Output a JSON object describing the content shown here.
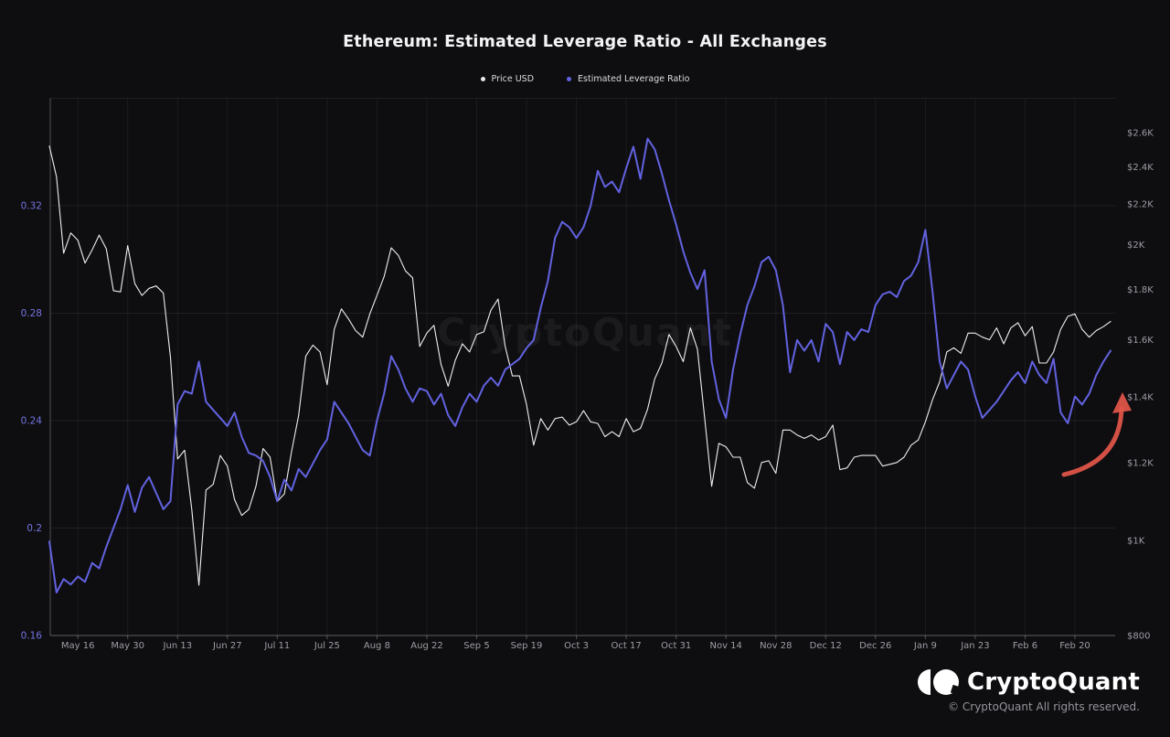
{
  "title": "Ethereum: Estimated Leverage Ratio - All Exchanges",
  "legend": [
    {
      "label": "Price USD",
      "color": "#e9e9ec"
    },
    {
      "label": "Estimated Leverage Ratio",
      "color": "#6262e0"
    }
  ],
  "watermark": "CryptoQuant",
  "footer": {
    "brand": "CryptoQuant",
    "copyright": "© CryptoQuant All rights reserved."
  },
  "chart_data": {
    "type": "line",
    "title": "Ethereum: Estimated Leverage Ratio - All Exchanges",
    "grid": true,
    "legend_position": "top-center",
    "x_axis": {
      "start_date": "May 8, 2022",
      "tick_labels": [
        "May 16",
        "May 30",
        "Jun 13",
        "Jun 27",
        "Jul 11",
        "Jul 25",
        "Aug 8",
        "Aug 22",
        "Sep 5",
        "Sep 19",
        "Oct 3",
        "Oct 17",
        "Oct 31",
        "Nov 14",
        "Nov 28",
        "Dec 12",
        "Dec 26",
        "Jan 9",
        "Jan 23",
        "Feb 6",
        "Feb 20"
      ],
      "tick_days": [
        8,
        22,
        36,
        50,
        64,
        78,
        92,
        106,
        120,
        134,
        148,
        162,
        176,
        190,
        204,
        218,
        232,
        246,
        260,
        274,
        288
      ],
      "day_range": [
        0,
        299
      ]
    },
    "y_left": {
      "name": "Estimated Leverage Ratio",
      "scale": "linear",
      "range": [
        0.16,
        0.36
      ],
      "tick_values": [
        0.32,
        0.28,
        0.24,
        0.2,
        0.16
      ],
      "tick_labels": [
        "0.32",
        "0.28",
        "0.24",
        "0.2",
        "0.16"
      ],
      "extra_gridlines": [
        0.36
      ],
      "label_color": "#7474e0"
    },
    "y_right": {
      "name": "Price USD",
      "scale": "log",
      "range": [
        800,
        2820
      ],
      "tick_values": [
        2600,
        2400,
        2200,
        2000,
        1800,
        1600,
        1400,
        1200,
        1000,
        800
      ],
      "tick_labels": [
        "$2.6K",
        "$2.4K",
        "$2.2K",
        "$2K",
        "$1.8K",
        "$1.6K",
        "$1.4K",
        "$1.2K",
        "$1K",
        "$800"
      ],
      "label_color": "#9d9da4"
    },
    "series": [
      {
        "name": "Price USD",
        "axis": "right",
        "color": "#efeff2",
        "width": 1.1,
        "start_day": 0,
        "step_days": 2,
        "values": [
          2520,
          2345,
          1960,
          2055,
          2020,
          1915,
          1975,
          2045,
          1980,
          1795,
          1790,
          1995,
          1825,
          1775,
          1805,
          1815,
          1785,
          1535,
          1210,
          1235,
          1075,
          900,
          1125,
          1140,
          1220,
          1190,
          1100,
          1060,
          1075,
          1135,
          1240,
          1215,
          1095,
          1115,
          1230,
          1340,
          1540,
          1580,
          1555,
          1440,
          1640,
          1720,
          1680,
          1635,
          1610,
          1700,
          1775,
          1855,
          1985,
          1950,
          1880,
          1850,
          1575,
          1625,
          1655,
          1510,
          1435,
          1525,
          1585,
          1555,
          1620,
          1630,
          1715,
          1760,
          1575,
          1470,
          1470,
          1375,
          1250,
          1330,
          1295,
          1330,
          1335,
          1310,
          1320,
          1355,
          1320,
          1315,
          1275,
          1290,
          1275,
          1330,
          1290,
          1300,
          1360,
          1460,
          1515,
          1620,
          1575,
          1520,
          1645,
          1565,
          1335,
          1135,
          1255,
          1245,
          1215,
          1215,
          1145,
          1130,
          1200,
          1205,
          1170,
          1295,
          1295,
          1280,
          1270,
          1280,
          1265,
          1275,
          1310,
          1180,
          1185,
          1215,
          1220,
          1220,
          1220,
          1190,
          1195,
          1200,
          1215,
          1250,
          1265,
          1320,
          1390,
          1450,
          1555,
          1570,
          1550,
          1625,
          1625,
          1610,
          1600,
          1645,
          1585,
          1645,
          1665,
          1615,
          1650,
          1515,
          1515,
          1555,
          1640,
          1690,
          1700,
          1640,
          1610,
          1635,
          1650,
          1670
        ]
      },
      {
        "name": "Estimated Leverage Ratio",
        "axis": "left",
        "color": "#6262e0",
        "width": 2,
        "start_day": 0,
        "step_days": 2,
        "values": [
          0.195,
          0.176,
          0.181,
          0.179,
          0.182,
          0.18,
          0.187,
          0.185,
          0.193,
          0.2,
          0.207,
          0.216,
          0.206,
          0.215,
          0.219,
          0.213,
          0.207,
          0.21,
          0.246,
          0.251,
          0.25,
          0.262,
          0.247,
          0.244,
          0.241,
          0.238,
          0.243,
          0.234,
          0.228,
          0.227,
          0.225,
          0.219,
          0.21,
          0.218,
          0.214,
          0.222,
          0.219,
          0.224,
          0.229,
          0.233,
          0.247,
          0.243,
          0.239,
          0.234,
          0.229,
          0.227,
          0.24,
          0.25,
          0.264,
          0.259,
          0.252,
          0.247,
          0.252,
          0.251,
          0.246,
          0.25,
          0.242,
          0.238,
          0.245,
          0.25,
          0.247,
          0.253,
          0.256,
          0.253,
          0.259,
          0.261,
          0.263,
          0.267,
          0.27,
          0.282,
          0.292,
          0.308,
          0.314,
          0.312,
          0.308,
          0.312,
          0.32,
          0.333,
          0.327,
          0.329,
          0.325,
          0.334,
          0.342,
          0.33,
          0.345,
          0.341,
          0.332,
          0.322,
          0.313,
          0.303,
          0.295,
          0.289,
          0.296,
          0.262,
          0.248,
          0.241,
          0.259,
          0.272,
          0.283,
          0.29,
          0.299,
          0.301,
          0.296,
          0.283,
          0.258,
          0.27,
          0.266,
          0.27,
          0.262,
          0.276,
          0.273,
          0.261,
          0.273,
          0.27,
          0.274,
          0.273,
          0.283,
          0.287,
          0.288,
          0.286,
          0.292,
          0.294,
          0.299,
          0.311,
          0.288,
          0.262,
          0.252,
          0.257,
          0.262,
          0.259,
          0.249,
          0.241,
          0.244,
          0.247,
          0.251,
          0.255,
          0.258,
          0.254,
          0.262,
          0.257,
          0.254,
          0.263,
          0.243,
          0.239,
          0.249,
          0.246,
          0.25,
          0.257,
          0.262,
          0.266
        ]
      }
    ],
    "annotation": {
      "type": "curved-arrow",
      "color": "#e25549",
      "from": {
        "day": 285,
        "ratio": 0.22
      },
      "to": {
        "day": 301,
        "ratio": 0.2465
      },
      "note": "hand-drawn arrow highlighting leverage ratio rising at far right"
    },
    "watermark": "CryptoQuant"
  }
}
